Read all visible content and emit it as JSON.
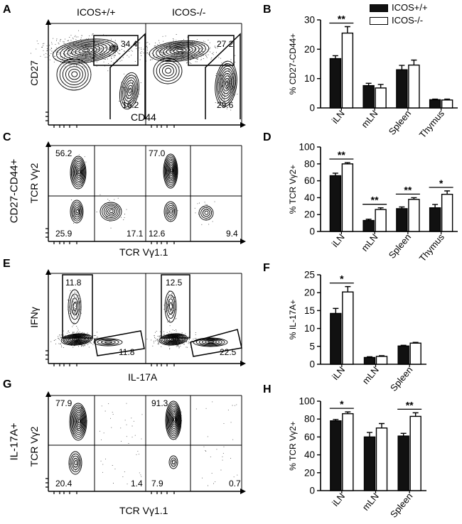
{
  "colors": {
    "wt": "#111111",
    "ko": "#ffffff",
    "ink": "#000000",
    "dots": "#333333"
  },
  "labels": {
    "A": "A",
    "B": "B",
    "C": "C",
    "D": "D",
    "E": "E",
    "F": "F",
    "G": "G",
    "H": "H",
    "icos_wt": "ICOS+/+",
    "icos_ko": "ICOS-/-",
    "cd27": "CD27",
    "cd44": "CD44",
    "tcr_vg2": "TCR Vγ2",
    "tcr_vg11": "TCR Vγ1.1",
    "ifng": "IFNγ",
    "il17a": "IL-17A",
    "cd27cd44": "CD27-CD44+",
    "il17a_pos": "IL-17A+"
  },
  "legend": {
    "wt": "ICOS+/+",
    "ko": "ICOS-/-"
  },
  "flow": {
    "A": {
      "wt": {
        "top": "34.4",
        "bottom": "16.2"
      },
      "ko": {
        "top": "27.2",
        "bottom": "29.6"
      }
    },
    "C": {
      "wt": {
        "ul": "56.2",
        "ll": "25.9",
        "lr": "17.1"
      },
      "ko": {
        "ul": "77.0",
        "ll": "12.6",
        "lr": "9.4"
      }
    },
    "E": {
      "wt": {
        "top": "11.8",
        "bottom": "11.8"
      },
      "ko": {
        "top": "12.5",
        "bottom": "22.5"
      }
    },
    "G": {
      "wt": {
        "ul": "77.9",
        "ll": "20.4",
        "lr": "1.4"
      },
      "ko": {
        "ul": "91.3",
        "ll": "7.9",
        "lr": "0.7"
      }
    }
  },
  "chart_data": [
    {
      "panel": "B",
      "type": "bar",
      "ylabel": "% CD27-CD44+",
      "ylim": [
        0,
        30
      ],
      "yticks": [
        0,
        10,
        20,
        30
      ],
      "categories": [
        "iLN",
        "mLN",
        "Spleen",
        "Thymus"
      ],
      "series": [
        {
          "name": "ICOS+/+",
          "values": [
            16.8,
            7.6,
            13.0,
            2.8
          ],
          "errors": [
            1.0,
            0.8,
            1.5,
            0.2
          ]
        },
        {
          "name": "ICOS-/-",
          "values": [
            25.5,
            6.8,
            14.6,
            2.7
          ],
          "errors": [
            2.2,
            1.2,
            1.7,
            0.3
          ]
        }
      ],
      "significance": [
        {
          "category": "iLN",
          "label": "**"
        }
      ]
    },
    {
      "panel": "D",
      "type": "bar",
      "ylabel": "% TCR Vγ2+",
      "ylim": [
        0,
        100
      ],
      "yticks": [
        0,
        20,
        40,
        60,
        80,
        100
      ],
      "categories": [
        "iLN",
        "mLN",
        "Spleen",
        "Thymus"
      ],
      "series": [
        {
          "name": "ICOS+/+",
          "values": [
            66,
            13,
            27,
            28
          ],
          "errors": [
            3,
            1.5,
            2,
            4
          ]
        },
        {
          "name": "ICOS-/-",
          "values": [
            80,
            26,
            38,
            44
          ],
          "errors": [
            1.5,
            2,
            2,
            4
          ]
        }
      ],
      "significance": [
        {
          "category": "iLN",
          "label": "**"
        },
        {
          "category": "mLN",
          "label": "**"
        },
        {
          "category": "Spleen",
          "label": "**"
        },
        {
          "category": "Thymus",
          "label": "*"
        }
      ]
    },
    {
      "panel": "F",
      "type": "bar",
      "ylabel": "% IL-17A+",
      "ylim": [
        0,
        25
      ],
      "yticks": [
        0,
        5,
        10,
        15,
        20,
        25
      ],
      "categories": [
        "iLN",
        "mLN",
        "Spleen"
      ],
      "series": [
        {
          "name": "ICOS+/+",
          "values": [
            14.2,
            1.9,
            5.1
          ],
          "errors": [
            1.4,
            0.2,
            0.2
          ]
        },
        {
          "name": "ICOS-/-",
          "values": [
            20.2,
            2.2,
            5.9
          ],
          "errors": [
            1.5,
            0.2,
            0.2
          ]
        }
      ],
      "significance": [
        {
          "category": "iLN",
          "label": "*"
        }
      ]
    },
    {
      "panel": "H",
      "type": "bar",
      "ylabel": "% TCR Vγ2+",
      "ylim": [
        0,
        100
      ],
      "yticks": [
        0,
        20,
        40,
        60,
        80,
        100
      ],
      "categories": [
        "iLN",
        "mLN",
        "Spleen"
      ],
      "series": [
        {
          "name": "ICOS+/+",
          "values": [
            78,
            60,
            61
          ],
          "errors": [
            1.5,
            5,
            3
          ]
        },
        {
          "name": "ICOS-/-",
          "values": [
            86,
            70,
            83
          ],
          "errors": [
            2,
            5,
            4
          ]
        }
      ],
      "significance": [
        {
          "category": "iLN",
          "label": "*"
        },
        {
          "category": "Spleen",
          "label": "**"
        }
      ]
    }
  ]
}
